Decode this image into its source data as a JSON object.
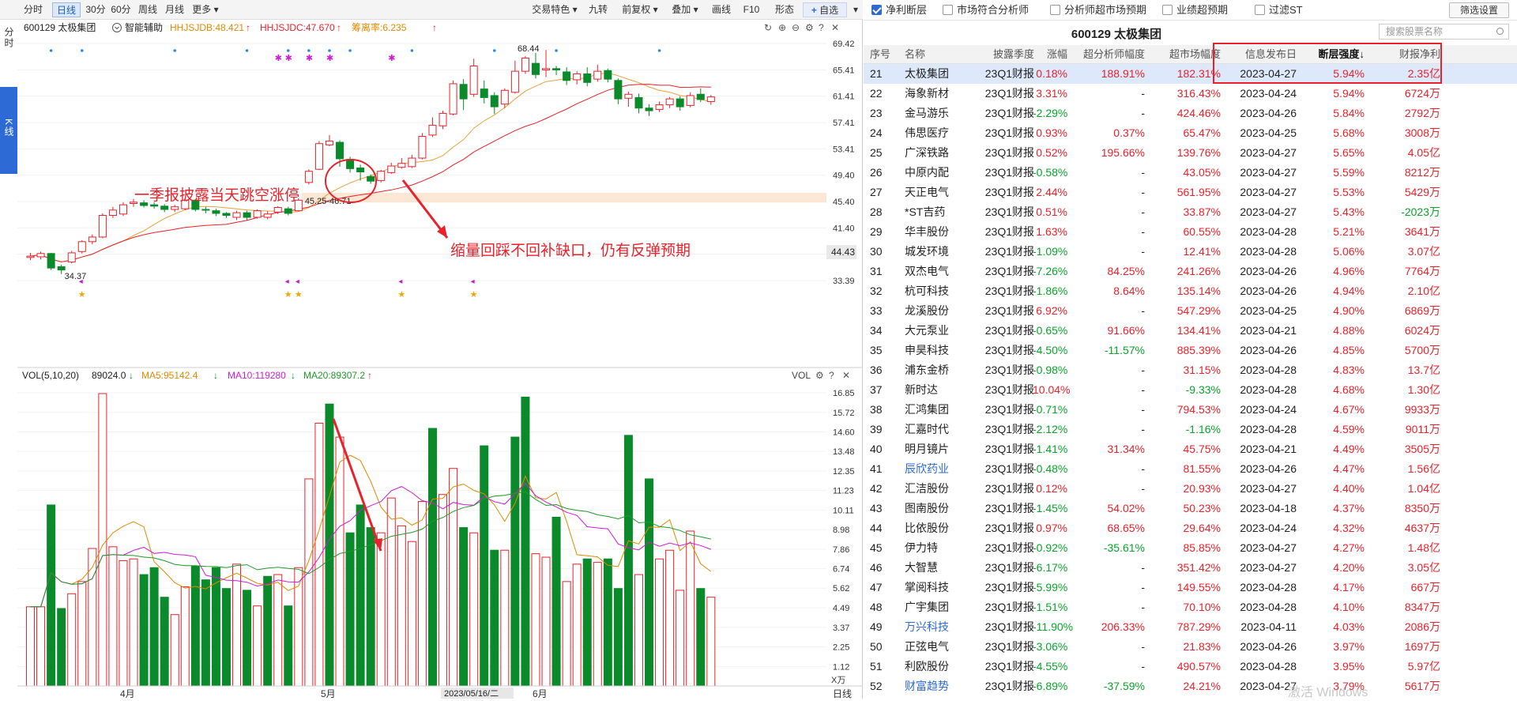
{
  "left_toolbar": {
    "periods": [
      "分时",
      "日线",
      "30分",
      "60分",
      "周线",
      "月线",
      "更多"
    ],
    "active_period": "日线",
    "tools": [
      "交易特色",
      "九转",
      "前复权",
      "叠加",
      "画线",
      "F10",
      "形态",
      "自选"
    ]
  },
  "side_tabs": {
    "tab1": "分时",
    "tab2": "K线"
  },
  "kline": {
    "stock_label": "600129 太极集团",
    "assist_label": "智能辅助",
    "ind1": "HHJSJDB:48.421",
    "ind2": "HHJSJDC:47.670",
    "ind3": "筹离率:6.235",
    "price_ticks": [
      "69.42",
      "65.41",
      "61.41",
      "57.41",
      "53.41",
      "49.40",
      "45.40",
      "41.40",
      "37.40",
      "33.39"
    ],
    "current_price": "44.43",
    "high_label": "68.44",
    "low_label": "34.37",
    "gap_label": "45.25-46.71",
    "annotation1": "一季报披露当天跳空涨停",
    "annotation2": "缩量回踩不回补缺口，仍有反弹预期",
    "color_up": "#e8222a",
    "color_down": "#0a8a2a"
  },
  "volume": {
    "title": "VOL(5,10,20)",
    "vol_value": "89024.0",
    "ma5": "MA5:95142.4",
    "ma10": "MA10:119280",
    "ma20": "MA20:89307.2",
    "vol_tag": "VOL",
    "ticks": [
      "16.85",
      "15.72",
      "14.60",
      "13.48",
      "12.35",
      "11.23",
      "10.11",
      "8.98",
      "7.86",
      "6.74",
      "5.62",
      "4.49",
      "3.37",
      "2.25",
      "1.12"
    ],
    "unit": "X万",
    "month_labels": [
      "4月",
      "5月",
      "6月"
    ],
    "cursor_date": "2023/05/16/二",
    "corner_label": "日线"
  },
  "filters": {
    "items": [
      {
        "label": "净利断层",
        "checked": true
      },
      {
        "label": "市场符合分析师",
        "checked": false
      },
      {
        "label": "分析师超市场预期",
        "checked": false
      },
      {
        "label": "业绩超预期",
        "checked": false
      },
      {
        "label": "过滤ST",
        "checked": false
      }
    ],
    "settings_button": "筛选设置"
  },
  "table": {
    "stock_title": "600129  太极集团",
    "search_placeholder": "搜索股票名称",
    "headers": [
      "序号",
      "名称",
      "披露季度",
      "涨幅",
      "超分析师幅度",
      "超市场幅度",
      "信息发布日",
      "断层强度↓",
      "财报净利"
    ],
    "rows": [
      [
        "21",
        "太极集团",
        "23Q1财报",
        "0.18%",
        "188.91%",
        "182.31%",
        "2023-04-27",
        "5.94%",
        "2.35亿"
      ],
      [
        "22",
        "海象新材",
        "23Q1财报",
        "3.31%",
        "-",
        "316.43%",
        "2023-04-24",
        "5.94%",
        "6724万"
      ],
      [
        "23",
        "金马游乐",
        "23Q1财报",
        "-2.29%",
        "-",
        "424.46%",
        "2023-04-26",
        "5.84%",
        "2792万"
      ],
      [
        "24",
        "伟思医疗",
        "23Q1财报",
        "0.93%",
        "0.37%",
        "65.47%",
        "2023-04-25",
        "5.68%",
        "3008万"
      ],
      [
        "25",
        "广深铁路",
        "23Q1财报",
        "0.52%",
        "195.66%",
        "139.76%",
        "2023-04-27",
        "5.65%",
        "4.05亿"
      ],
      [
        "26",
        "中原内配",
        "23Q1财报",
        "-0.58%",
        "-",
        "43.05%",
        "2023-04-27",
        "5.59%",
        "8212万"
      ],
      [
        "27",
        "天正电气",
        "23Q1财报",
        "2.44%",
        "-",
        "561.95%",
        "2023-04-27",
        "5.53%",
        "5429万"
      ],
      [
        "28",
        "*ST吉药",
        "23Q1财报",
        "0.51%",
        "-",
        "33.87%",
        "2023-04-27",
        "5.43%",
        "-2023万"
      ],
      [
        "29",
        "华丰股份",
        "23Q1财报",
        "1.63%",
        "-",
        "60.55%",
        "2023-04-28",
        "5.21%",
        "3641万"
      ],
      [
        "30",
        "城发环境",
        "23Q1财报",
        "-1.09%",
        "-",
        "12.41%",
        "2023-04-28",
        "5.06%",
        "3.07亿"
      ],
      [
        "31",
        "双杰电气",
        "23Q1财报",
        "-7.26%",
        "84.25%",
        "241.26%",
        "2023-04-26",
        "4.96%",
        "7764万"
      ],
      [
        "32",
        "杭可科技",
        "23Q1财报",
        "-1.86%",
        "8.64%",
        "135.14%",
        "2023-04-26",
        "4.94%",
        "2.10亿"
      ],
      [
        "33",
        "龙溪股份",
        "23Q1财报",
        "6.92%",
        "-",
        "547.29%",
        "2023-04-25",
        "4.90%",
        "6869万"
      ],
      [
        "34",
        "大元泵业",
        "23Q1财报",
        "-0.65%",
        "91.66%",
        "134.41%",
        "2023-04-21",
        "4.88%",
        "6024万"
      ],
      [
        "35",
        "申昊科技",
        "23Q1财报",
        "-4.50%",
        "-11.57%",
        "885.39%",
        "2023-04-26",
        "4.85%",
        "5700万"
      ],
      [
        "36",
        "浦东金桥",
        "23Q1财报",
        "-0.98%",
        "-",
        "31.15%",
        "2023-04-28",
        "4.83%",
        "13.7亿"
      ],
      [
        "37",
        "新时达",
        "23Q1财报",
        "10.04%",
        "-",
        "-9.33%",
        "2023-04-28",
        "4.68%",
        "1.30亿"
      ],
      [
        "38",
        "汇鸿集团",
        "23Q1财报",
        "-0.71%",
        "-",
        "794.53%",
        "2023-04-24",
        "4.67%",
        "9933万"
      ],
      [
        "39",
        "汇嘉时代",
        "23Q1财报",
        "-2.12%",
        "-",
        "-1.16%",
        "2023-04-28",
        "4.59%",
        "9011万"
      ],
      [
        "40",
        "明月镜片",
        "23Q1财报",
        "-1.41%",
        "31.34%",
        "45.75%",
        "2023-04-21",
        "4.49%",
        "3505万"
      ],
      [
        "41",
        "辰欣药业",
        "23Q1财报",
        "-0.48%",
        "-",
        "81.55%",
        "2023-04-26",
        "4.47%",
        "1.56亿"
      ],
      [
        "42",
        "汇洁股份",
        "23Q1财报",
        "0.12%",
        "-",
        "20.93%",
        "2023-04-27",
        "4.40%",
        "1.04亿"
      ],
      [
        "43",
        "图南股份",
        "23Q1财报",
        "-1.45%",
        "54.02%",
        "50.23%",
        "2023-04-18",
        "4.37%",
        "8350万"
      ],
      [
        "44",
        "比依股份",
        "23Q1财报",
        "0.97%",
        "68.65%",
        "29.64%",
        "2023-04-24",
        "4.32%",
        "4637万"
      ],
      [
        "45",
        "伊力特",
        "23Q1财报",
        "-0.92%",
        "-35.61%",
        "85.85%",
        "2023-04-27",
        "4.27%",
        "1.48亿"
      ],
      [
        "46",
        "大智慧",
        "23Q1财报",
        "-6.17%",
        "-",
        "351.42%",
        "2023-04-27",
        "4.20%",
        "3.05亿"
      ],
      [
        "47",
        "掌阅科技",
        "23Q1财报",
        "-5.99%",
        "-",
        "149.55%",
        "2023-04-28",
        "4.17%",
        "667万"
      ],
      [
        "48",
        "广宇集团",
        "23Q1财报",
        "-1.51%",
        "-",
        "70.10%",
        "2023-04-28",
        "4.10%",
        "8347万"
      ],
      [
        "49",
        "万兴科技",
        "23Q1财报",
        "-11.90%",
        "206.33%",
        "787.29%",
        "2023-04-11",
        "4.03%",
        "2086万"
      ],
      [
        "50",
        "正弦电气",
        "23Q1财报",
        "-3.06%",
        "-",
        "21.83%",
        "2023-04-26",
        "3.97%",
        "1697万"
      ],
      [
        "51",
        "利欧股份",
        "23Q1财报",
        "-4.55%",
        "-",
        "490.57%",
        "2023-04-28",
        "3.95%",
        "5.97亿"
      ],
      [
        "52",
        "财富趋势",
        "23Q1财报",
        "-6.89%",
        "-37.59%",
        "24.21%",
        "2023-04-27",
        "3.79%",
        "5617万"
      ]
    ],
    "blue_names": [
      "辰欣药业",
      "万兴科技",
      "财富趋势"
    ]
  },
  "watermark": "激活 Windows",
  "chart_data": {
    "type": "candlestick",
    "ylim": [
      33.39,
      69.42
    ],
    "candles": [
      {
        "o": 36.9,
        "c": 37.1,
        "h": 37.6,
        "l": 36.5
      },
      {
        "o": 37.0,
        "c": 37.5,
        "h": 37.8,
        "l": 36.6
      },
      {
        "o": 37.5,
        "c": 35.3,
        "h": 37.6,
        "l": 35.0
      },
      {
        "o": 35.5,
        "c": 35.0,
        "h": 35.8,
        "l": 34.37
      },
      {
        "o": 36.2,
        "c": 37.6,
        "h": 37.9,
        "l": 36.0
      },
      {
        "o": 37.8,
        "c": 39.3,
        "h": 39.5,
        "l": 37.5
      },
      {
        "o": 39.3,
        "c": 40.0,
        "h": 40.4,
        "l": 38.9
      },
      {
        "o": 40.0,
        "c": 43.3,
        "h": 43.6,
        "l": 39.8
      },
      {
        "o": 43.3,
        "c": 44.1,
        "h": 44.6,
        "l": 42.9
      },
      {
        "o": 43.5,
        "c": 44.9,
        "h": 45.3,
        "l": 43.2
      },
      {
        "o": 45.1,
        "c": 45.3,
        "h": 45.8,
        "l": 44.6
      },
      {
        "o": 45.2,
        "c": 44.8,
        "h": 45.6,
        "l": 44.5
      },
      {
        "o": 44.9,
        "c": 44.7,
        "h": 45.3,
        "l": 44.3
      },
      {
        "o": 44.7,
        "c": 44.2,
        "h": 45.0,
        "l": 43.8
      },
      {
        "o": 44.2,
        "c": 44.6,
        "h": 44.9,
        "l": 43.8
      },
      {
        "o": 44.3,
        "c": 45.6,
        "h": 46.0,
        "l": 44.1
      },
      {
        "o": 45.6,
        "c": 44.2,
        "h": 45.8,
        "l": 43.9
      },
      {
        "o": 44.2,
        "c": 44.1,
        "h": 44.6,
        "l": 43.6
      },
      {
        "o": 44.0,
        "c": 43.6,
        "h": 44.3,
        "l": 43.2
      },
      {
        "o": 43.6,
        "c": 43.3,
        "h": 43.8,
        "l": 42.9
      },
      {
        "o": 43.0,
        "c": 43.7,
        "h": 44.0,
        "l": 42.6
      },
      {
        "o": 43.7,
        "c": 43.0,
        "h": 44.0,
        "l": 42.5
      },
      {
        "o": 43.0,
        "c": 44.0,
        "h": 44.2,
        "l": 42.8
      },
      {
        "o": 43.0,
        "c": 43.5,
        "h": 43.9,
        "l": 42.7
      },
      {
        "o": 43.8,
        "c": 44.5,
        "h": 44.7,
        "l": 43.5
      },
      {
        "o": 44.3,
        "c": 43.6,
        "h": 44.6,
        "l": 43.3
      },
      {
        "o": 44.0,
        "c": 45.6,
        "h": 45.9,
        "l": 43.9
      },
      {
        "o": 48.3,
        "c": 50.0,
        "h": 50.3,
        "l": 48.0
      },
      {
        "o": 50.3,
        "c": 54.2,
        "h": 54.6,
        "l": 50.2
      },
      {
        "o": 54.0,
        "c": 54.6,
        "h": 55.5,
        "l": 53.8
      },
      {
        "o": 54.4,
        "c": 51.9,
        "h": 54.7,
        "l": 50.7
      },
      {
        "o": 51.8,
        "c": 50.4,
        "h": 52.2,
        "l": 49.8
      },
      {
        "o": 50.5,
        "c": 49.9,
        "h": 51.0,
        "l": 48.6
      },
      {
        "o": 49.2,
        "c": 48.5,
        "h": 49.5,
        "l": 48.1
      },
      {
        "o": 48.6,
        "c": 50.0,
        "h": 50.2,
        "l": 48.3
      },
      {
        "o": 49.8,
        "c": 50.8,
        "h": 51.3,
        "l": 49.6
      },
      {
        "o": 50.6,
        "c": 51.2,
        "h": 52.0,
        "l": 50.4
      },
      {
        "o": 50.7,
        "c": 52.0,
        "h": 52.5,
        "l": 50.5
      },
      {
        "o": 52.0,
        "c": 55.3,
        "h": 55.8,
        "l": 51.8
      },
      {
        "o": 55.5,
        "c": 57.0,
        "h": 58.2,
        "l": 55.2
      },
      {
        "o": 56.9,
        "c": 58.8,
        "h": 59.2,
        "l": 56.4
      },
      {
        "o": 58.7,
        "c": 63.3,
        "h": 63.8,
        "l": 58.5
      },
      {
        "o": 63.2,
        "c": 61.0,
        "h": 64.0,
        "l": 59.3
      },
      {
        "o": 61.7,
        "c": 66.0,
        "h": 67.1,
        "l": 61.3
      },
      {
        "o": 62.5,
        "c": 61.2,
        "h": 63.8,
        "l": 60.3
      },
      {
        "o": 61.5,
        "c": 59.8,
        "h": 62.0,
        "l": 58.7
      },
      {
        "o": 60.2,
        "c": 62.3,
        "h": 62.6,
        "l": 59.6
      },
      {
        "o": 62.0,
        "c": 65.2,
        "h": 66.8,
        "l": 61.8
      },
      {
        "o": 65.2,
        "c": 67.2,
        "h": 67.5,
        "l": 64.8
      },
      {
        "o": 66.4,
        "c": 64.7,
        "h": 68.0,
        "l": 64.1
      },
      {
        "o": 65.4,
        "c": 65.6,
        "h": 68.44,
        "l": 64.3
      },
      {
        "o": 65.6,
        "c": 65.4,
        "h": 66.0,
        "l": 64.6
      },
      {
        "o": 65.1,
        "c": 63.8,
        "h": 65.8,
        "l": 63.1
      },
      {
        "o": 63.9,
        "c": 64.8,
        "h": 65.2,
        "l": 63.2
      },
      {
        "o": 64.8,
        "c": 63.5,
        "h": 65.8,
        "l": 62.9
      },
      {
        "o": 64.0,
        "c": 65.2,
        "h": 66.2,
        "l": 63.6
      },
      {
        "o": 65.3,
        "c": 64.0,
        "h": 65.6,
        "l": 63.5
      },
      {
        "o": 63.8,
        "c": 61.0,
        "h": 64.1,
        "l": 60.2
      },
      {
        "o": 61.1,
        "c": 61.7,
        "h": 62.1,
        "l": 59.8
      },
      {
        "o": 61.2,
        "c": 59.6,
        "h": 61.8,
        "l": 58.8
      },
      {
        "o": 59.6,
        "c": 59.2,
        "h": 60.2,
        "l": 58.4
      },
      {
        "o": 59.4,
        "c": 60.1,
        "h": 60.6,
        "l": 59.0
      },
      {
        "o": 60.1,
        "c": 61.0,
        "h": 61.3,
        "l": 59.6
      },
      {
        "o": 61.0,
        "c": 59.8,
        "h": 61.4,
        "l": 59.2
      },
      {
        "o": 60.0,
        "c": 61.5,
        "h": 62.0,
        "l": 59.7
      },
      {
        "o": 61.7,
        "c": 60.9,
        "h": 62.6,
        "l": 60.5
      },
      {
        "o": 60.6,
        "c": 61.3,
        "h": 61.6,
        "l": 60.1
      }
    ],
    "volume_series": [
      {
        "v": 4.55,
        "up": true
      },
      {
        "v": 4.55,
        "up": true
      },
      {
        "v": 10.4,
        "up": false
      },
      {
        "v": 4.45,
        "up": false
      },
      {
        "v": 5.3,
        "up": true
      },
      {
        "v": 6.0,
        "up": true
      },
      {
        "v": 7.9,
        "up": true
      },
      {
        "v": 16.8,
        "up": true
      },
      {
        "v": 8.0,
        "up": true
      },
      {
        "v": 7.2,
        "up": true
      },
      {
        "v": 7.3,
        "up": true
      },
      {
        "v": 6.4,
        "up": false
      },
      {
        "v": 6.8,
        "up": false
      },
      {
        "v": 5.1,
        "up": false
      },
      {
        "v": 4.1,
        "up": true
      },
      {
        "v": 5.7,
        "up": true
      },
      {
        "v": 6.9,
        "up": false
      },
      {
        "v": 6.1,
        "up": false
      },
      {
        "v": 6.8,
        "up": false
      },
      {
        "v": 5.6,
        "up": false
      },
      {
        "v": 7.0,
        "up": true
      },
      {
        "v": 5.5,
        "up": false
      },
      {
        "v": 4.6,
        "up": true
      },
      {
        "v": 6.3,
        "up": false
      },
      {
        "v": 6.4,
        "up": true
      },
      {
        "v": 4.6,
        "up": false
      },
      {
        "v": 6.8,
        "up": true
      },
      {
        "v": 11.9,
        "up": true
      },
      {
        "v": 15.1,
        "up": true
      },
      {
        "v": 16.2,
        "up": false
      },
      {
        "v": 14.3,
        "up": true
      },
      {
        "v": 8.8,
        "up": false
      },
      {
        "v": 10.4,
        "up": false
      },
      {
        "v": 9.1,
        "up": false
      },
      {
        "v": 8.8,
        "up": true
      },
      {
        "v": 10.8,
        "up": true
      },
      {
        "v": 9.2,
        "up": true
      },
      {
        "v": 8.3,
        "up": true
      },
      {
        "v": 10.6,
        "up": true
      },
      {
        "v": 14.8,
        "up": false
      },
      {
        "v": 11.0,
        "up": true
      },
      {
        "v": 12.5,
        "up": true
      },
      {
        "v": 9.1,
        "up": false
      },
      {
        "v": 8.8,
        "up": true
      },
      {
        "v": 13.8,
        "up": false
      },
      {
        "v": 7.8,
        "up": false
      },
      {
        "v": 7.8,
        "up": true
      },
      {
        "v": 14.3,
        "up": false
      },
      {
        "v": 16.6,
        "up": false
      },
      {
        "v": 7.6,
        "up": true
      },
      {
        "v": 7.4,
        "up": true
      },
      {
        "v": 9.7,
        "up": false
      },
      {
        "v": 6.0,
        "up": true
      },
      {
        "v": 7.0,
        "up": true
      },
      {
        "v": 7.3,
        "up": false
      },
      {
        "v": 7.1,
        "up": true
      },
      {
        "v": 7.3,
        "up": false
      },
      {
        "v": 5.6,
        "up": false
      },
      {
        "v": 14.4,
        "up": false
      },
      {
        "v": 6.4,
        "up": true
      },
      {
        "v": 11.9,
        "up": false
      },
      {
        "v": 7.3,
        "up": true
      },
      {
        "v": 7.8,
        "up": true
      },
      {
        "v": 5.5,
        "up": true
      },
      {
        "v": 8.9,
        "up": true
      },
      {
        "v": 5.6,
        "up": false
      },
      {
        "v": 5.1,
        "up": true
      }
    ],
    "vol_ylim": [
      0,
      17.3
    ]
  }
}
